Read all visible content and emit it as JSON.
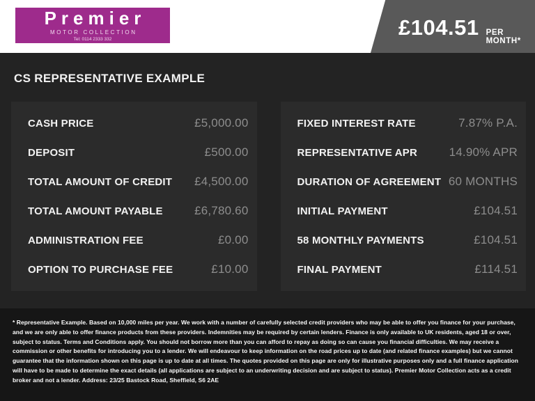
{
  "header": {
    "logo": {
      "name": "Premier",
      "subtitle": "MOTOR COLLECTION",
      "tel": "Tel: 0114 2333 332"
    },
    "price_banner": {
      "amount": "£104.51",
      "per": "PER MONTH*"
    }
  },
  "main": {
    "title": "CS REPRESENTATIVE EXAMPLE",
    "left_rows": [
      {
        "label": "CASH PRICE",
        "value": "£5,000.00"
      },
      {
        "label": "DEPOSIT",
        "value": "£500.00"
      },
      {
        "label": "TOTAL AMOUNT OF CREDIT",
        "value": "£4,500.00"
      },
      {
        "label": "TOTAL AMOUNT PAYABLE",
        "value": "£6,780.60"
      },
      {
        "label": "ADMINISTRATION FEE",
        "value": "£0.00"
      },
      {
        "label": "OPTION TO PURCHASE FEE",
        "value": "£10.00"
      }
    ],
    "right_rows": [
      {
        "label": "FIXED INTEREST RATE",
        "value": "7.87% P.A."
      },
      {
        "label": "REPRESENTATIVE APR",
        "value": "14.90% APR"
      },
      {
        "label": "DURATION OF AGREEMENT",
        "value": "60 MONTHS"
      },
      {
        "label": "INITIAL PAYMENT",
        "value": "£104.51"
      },
      {
        "label": "58 MONTHLY PAYMENTS",
        "value": "£104.51"
      },
      {
        "label": "FINAL PAYMENT",
        "value": "£114.51"
      }
    ]
  },
  "footer": {
    "disclaimer": "* Representative Example. Based on 10,000 miles per year. We work with a number of carefully selected credit providers who may be able to offer you finance for your purchase, and we are only able to offer finance products from these providers. Indemnities may be required by certain lenders. Finance is only available to UK residents, aged 18 or over, subject to status. Terms and Conditions apply. You should not borrow more than you can afford to repay as doing so can cause you financial difficulties. We may receive a commission or other benefits for introducing you to a lender. We will endeavour to keep information on the road prices up to date (and related finance examples) but we cannot guarantee that the information shown on this page is up to date at all times. The quotes provided on this page are only for illustrative purposes only and a full finance application will have to be made to determine the exact details (all applications are subject to an underwriting decision and are subject to status). Premier Motor Collection acts as a credit broker and not a lender. Address: 23/25 Bastock Road, Sheffield, S6 2AE"
  },
  "colors": {
    "logo_purple": "#9e2b8c",
    "banner_gray": "#595959",
    "page_background": "#232323",
    "panel_background": "#2b2b2b",
    "footer_background": "#161616",
    "label_text": "#f2f2f2",
    "value_text": "#8d8d8d"
  }
}
